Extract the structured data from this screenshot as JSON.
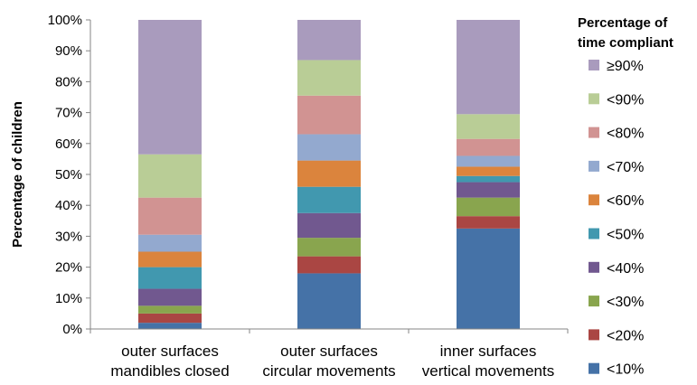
{
  "chart_data": {
    "type": "bar",
    "stacked": true,
    "title": "",
    "xlabel": "",
    "ylabel": "Percentage of children",
    "ylim": [
      0,
      100
    ],
    "y_ticks": [
      "0%",
      "10%",
      "20%",
      "30%",
      "40%",
      "50%",
      "60%",
      "70%",
      "80%",
      "90%",
      "100%"
    ],
    "categories": [
      [
        "outer surfaces",
        "mandibles closed"
      ],
      [
        "outer surfaces",
        "circular movements"
      ],
      [
        "inner surfaces",
        "vertical movements"
      ]
    ],
    "grid": false,
    "legend_position": "right",
    "legend_title": [
      "Percentage of",
      "time compliant"
    ],
    "series": [
      {
        "name": "<10%",
        "color": "#4572A7",
        "values": [
          2.0,
          18.0,
          32.5
        ]
      },
      {
        "name": "<20%",
        "color": "#AA4643",
        "values": [
          3.0,
          5.5,
          4.0
        ]
      },
      {
        "name": "<30%",
        "color": "#89A54E",
        "values": [
          2.5,
          6.0,
          6.0
        ]
      },
      {
        "name": "<40%",
        "color": "#71588F",
        "values": [
          5.5,
          8.0,
          5.0
        ]
      },
      {
        "name": "<50%",
        "color": "#4198AF",
        "values": [
          7.0,
          8.5,
          2.0
        ]
      },
      {
        "name": "<60%",
        "color": "#DB843D",
        "values": [
          5.0,
          8.5,
          3.0
        ]
      },
      {
        "name": "<70%",
        "color": "#93A9CF",
        "values": [
          5.5,
          8.5,
          3.5
        ]
      },
      {
        "name": "<80%",
        "color": "#D19392",
        "values": [
          12.0,
          12.5,
          5.5
        ]
      },
      {
        "name": "<90%",
        "color": "#B9CD96",
        "values": [
          14.0,
          11.5,
          8.0
        ]
      },
      {
        "name": "≥90%",
        "color": "#A99BBD",
        "values": [
          43.5,
          13.0,
          30.5
        ]
      }
    ]
  }
}
